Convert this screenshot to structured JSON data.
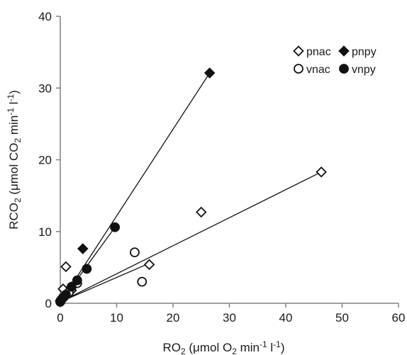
{
  "chart_data": {
    "type": "scatter",
    "xlabel_parts": [
      {
        "t": "RO",
        "s": "n"
      },
      {
        "t": "2",
        "s": "sub"
      },
      {
        "t": " (μmol O",
        "s": "n"
      },
      {
        "t": "2",
        "s": "sub"
      },
      {
        "t": " min",
        "s": "n"
      },
      {
        "t": "-1",
        "s": "sup"
      },
      {
        "t": " l",
        "s": "n"
      },
      {
        "t": "-1",
        "s": "sup"
      },
      {
        "t": ")",
        "s": "n"
      }
    ],
    "ylabel_parts": [
      {
        "t": "RCO",
        "s": "n"
      },
      {
        "t": "2",
        "s": "sub"
      },
      {
        "t": " (μmol CO",
        "s": "n"
      },
      {
        "t": "2",
        "s": "sub"
      },
      {
        "t": " min",
        "s": "n"
      },
      {
        "t": "-1",
        "s": "sup"
      },
      {
        "t": " l",
        "s": "n"
      },
      {
        "t": "-1",
        "s": "sup"
      },
      {
        "t": ")",
        "s": "n"
      }
    ],
    "xlim": [
      0,
      60
    ],
    "ylim": [
      0,
      40
    ],
    "xticks": [
      "0",
      "10",
      "20",
      "30",
      "40",
      "50",
      "60"
    ],
    "yticks": [
      "0",
      "10",
      "20",
      "30",
      "40"
    ],
    "legend_position": "top-right",
    "grid": false,
    "series": [
      {
        "name": "pnac",
        "marker": "diamond-open",
        "points": [
          [
            46.3,
            18.3
          ],
          [
            25.0,
            12.7
          ],
          [
            15.8,
            5.4
          ],
          [
            1.0,
            5.1
          ],
          [
            2.0,
            1.8
          ],
          [
            0.5,
            2.0
          ],
          [
            0.3,
            0.6
          ],
          [
            0.0,
            0.3
          ]
        ],
        "fit": [
          [
            0,
            0.2
          ],
          [
            46.3,
            18.3
          ]
        ]
      },
      {
        "name": "pnpy",
        "marker": "diamond-filled",
        "points": [
          [
            26.5,
            32.1
          ],
          [
            4.0,
            7.6
          ],
          [
            2.0,
            2.3
          ],
          [
            1.0,
            1.2
          ],
          [
            0.5,
            0.6
          ],
          [
            0.0,
            0.3
          ]
        ],
        "fit": [
          [
            0,
            0.1
          ],
          [
            26.5,
            32.1
          ]
        ]
      },
      {
        "name": "vnac",
        "marker": "circle-open",
        "points": [
          [
            13.2,
            7.1
          ],
          [
            14.5,
            3.0
          ],
          [
            3.0,
            2.8
          ],
          [
            1.5,
            1.5
          ],
          [
            0.5,
            0.8
          ],
          [
            0.0,
            0.3
          ]
        ],
        "fit": [
          [
            0,
            0.2
          ],
          [
            15.0,
            5.3
          ]
        ]
      },
      {
        "name": "vnpy",
        "marker": "circle-filled",
        "points": [
          [
            9.7,
            10.6
          ],
          [
            4.7,
            4.8
          ],
          [
            3.0,
            3.2
          ],
          [
            2.0,
            2.3
          ],
          [
            1.0,
            1.2
          ],
          [
            0.2,
            0.5
          ],
          [
            0.0,
            0.2
          ]
        ],
        "fit": [
          [
            0,
            0.1
          ],
          [
            9.7,
            10.6
          ]
        ]
      }
    ]
  }
}
